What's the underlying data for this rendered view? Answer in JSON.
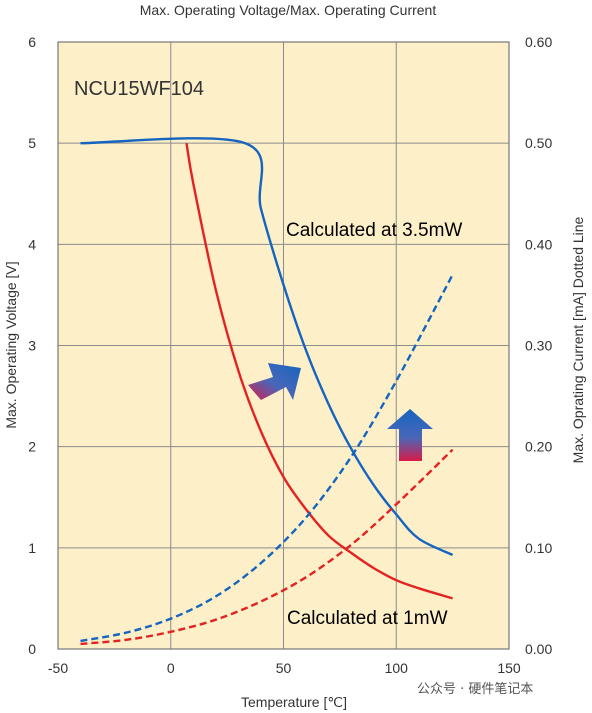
{
  "chart_data": {
    "type": "line",
    "title": "Max. Operating Voltage/Max. Operating Current",
    "part_label": "NCU15WF104",
    "xlabel": "Temperature [℃]",
    "ylabel_left": "Max. Operating Voltage [V]",
    "ylabel_right": "Max. Oprating Current [mA] Dotted Line",
    "xlim": [
      -50,
      150
    ],
    "ylim_left": [
      0,
      6
    ],
    "ylim_right": [
      0,
      0.6
    ],
    "x_ticks": [
      "-50",
      "0",
      "50",
      "100",
      "150"
    ],
    "y_left_ticks": [
      "0",
      "1",
      "2",
      "3",
      "4",
      "5",
      "6"
    ],
    "y_right_ticks": [
      "0.00",
      "0.10",
      "0.20",
      "0.30",
      "0.40",
      "0.50",
      "0.60"
    ],
    "grid": true,
    "background_color": "#FDEFC8",
    "series": [
      {
        "name": "Calculated at 3.5mW",
        "axis": "left",
        "style": "solid",
        "color": "#1565C0",
        "x": [
          -40,
          33,
          40,
          50,
          60,
          70,
          80,
          90,
          100,
          110,
          125
        ],
        "y": [
          5.0,
          5.0,
          4.35,
          3.6,
          2.95,
          2.42,
          1.98,
          1.62,
          1.33,
          1.09,
          0.93
        ]
      },
      {
        "name": "Calculated at 1mW",
        "axis": "left",
        "style": "solid",
        "color": "#E32222",
        "x": [
          7,
          10,
          20,
          30,
          40,
          50,
          60,
          70,
          80,
          90,
          100,
          110,
          125
        ],
        "y": [
          5.0,
          4.6,
          3.55,
          2.75,
          2.15,
          1.7,
          1.38,
          1.12,
          0.95,
          0.8,
          0.68,
          0.6,
          0.5
        ]
      },
      {
        "name": "",
        "axis": "right",
        "style": "dashed",
        "color": "#1565C0",
        "x": [
          -40,
          -20,
          0,
          20,
          40,
          60,
          80,
          100,
          125
        ],
        "y": [
          0.008,
          0.016,
          0.03,
          0.052,
          0.085,
          0.13,
          0.19,
          0.265,
          0.37
        ]
      },
      {
        "name": "",
        "axis": "right",
        "style": "dashed",
        "color": "#E32222",
        "x": [
          -40,
          -20,
          0,
          20,
          40,
          60,
          80,
          100,
          125
        ],
        "y": [
          0.005,
          0.009,
          0.017,
          0.029,
          0.047,
          0.071,
          0.103,
          0.143,
          0.197
        ]
      }
    ],
    "annotations": [
      {
        "text": "Calculated at 3.5mW",
        "color": "#1565C0"
      },
      {
        "text": "Calculated at 1mW",
        "color": "#E32222"
      }
    ]
  },
  "watermark": "公众号 · 硬件笔记本"
}
